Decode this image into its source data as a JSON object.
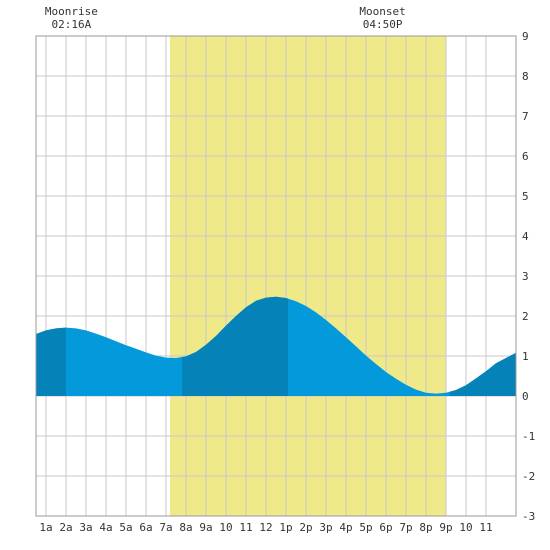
{
  "chart_data": {
    "type": "area",
    "title": "",
    "xlabel": "",
    "ylabel": "",
    "ylim": [
      -3,
      9
    ],
    "xlim": [
      -0.5,
      23.5
    ],
    "grid": true,
    "y_ticks": [
      -3,
      -2,
      -1,
      0,
      1,
      2,
      3,
      4,
      5,
      6,
      7,
      8,
      9
    ],
    "x_tick_labels": [
      "1a",
      "2a",
      "3a",
      "4a",
      "5a",
      "6a",
      "7a",
      "8a",
      "9a",
      "10",
      "11",
      "12",
      "1p",
      "2p",
      "3p",
      "4p",
      "5p",
      "6p",
      "7p",
      "8p",
      "9p",
      "10",
      "11"
    ],
    "daylight": {
      "start": 6.2,
      "end": 20.0,
      "color": "#f0e98a"
    },
    "tide_color": "#0399db",
    "tide_dark_color": "#0583b8",
    "dark_bands": [
      [
        -0.5,
        1.0
      ],
      [
        6.8,
        12.1
      ],
      [
        20.2,
        23.5
      ]
    ],
    "tide": {
      "x": [
        -0.5,
        0,
        0.5,
        1,
        1.5,
        2,
        2.5,
        3,
        3.5,
        4,
        4.5,
        5,
        5.5,
        6,
        6.5,
        7,
        7.5,
        8,
        8.5,
        9,
        9.5,
        10,
        10.5,
        11,
        11.5,
        12,
        12.5,
        13,
        13.5,
        14,
        14.5,
        15,
        15.5,
        16,
        16.5,
        17,
        17.5,
        18,
        18.5,
        19,
        19.5,
        20,
        20.5,
        21,
        21.5,
        22,
        22.5,
        23,
        23.5
      ],
      "y": [
        1.55,
        1.64,
        1.69,
        1.71,
        1.69,
        1.64,
        1.56,
        1.47,
        1.37,
        1.27,
        1.18,
        1.09,
        1.01,
        0.96,
        0.95,
        0.99,
        1.1,
        1.28,
        1.5,
        1.76,
        2.0,
        2.22,
        2.38,
        2.46,
        2.48,
        2.45,
        2.37,
        2.25,
        2.09,
        1.9,
        1.69,
        1.47,
        1.24,
        1.01,
        0.8,
        0.6,
        0.43,
        0.28,
        0.16,
        0.08,
        0.06,
        0.08,
        0.15,
        0.27,
        0.44,
        0.62,
        0.82,
        0.95,
        1.08
      ]
    },
    "annotations": [
      {
        "label": "Moonrise",
        "time": "02:16A",
        "x": 1.27
      },
      {
        "label": "Moonset",
        "time": "04:50P",
        "x": 16.83
      }
    ]
  }
}
